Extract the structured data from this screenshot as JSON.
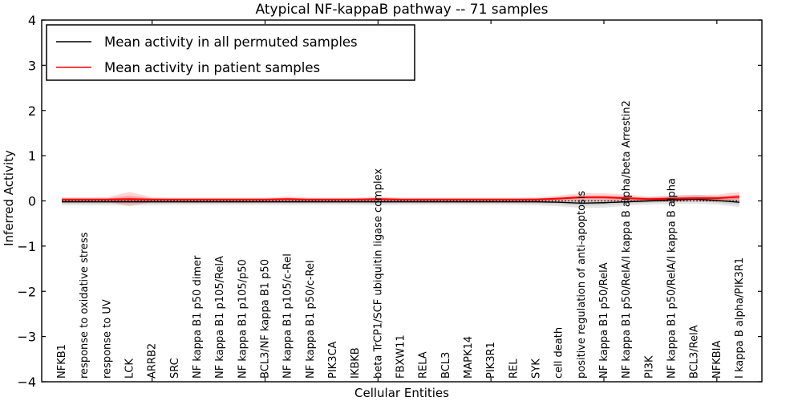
{
  "figure": {
    "background": "#ffffff"
  },
  "chart_data": {
    "type": "line",
    "title": "Atypical NF-kappaB pathway -- 71 samples",
    "xlabel": "Cellular Entities",
    "ylabel": "Inferred Activity",
    "ylim": [
      -4,
      4
    ],
    "ytick_values": [
      4,
      3,
      2,
      1,
      0,
      -1,
      -2,
      -3,
      -4
    ],
    "ytick_labels": [
      "4",
      "3",
      "2",
      "1",
      "0",
      "−1",
      "−2",
      "−3",
      "−4"
    ],
    "x_major_ticks": [
      5,
      10,
      15,
      20,
      25,
      30
    ],
    "grid": "off",
    "zero_line": {
      "value": 0,
      "style": "dotted",
      "color": "#000000"
    },
    "legend": {
      "position": "upper-left",
      "border_color": "#000000",
      "background": "#ffffff"
    },
    "categories": [
      "NFKB1",
      "response to oxidative stress",
      "response to UV",
      "LCK",
      "ARRB2",
      "SRC",
      "NF kappa B1 p50 dimer",
      "NF kappa B1 p105/RelA",
      "NF kappa B1 p105/p50",
      "BCL3/NF kappa B1 p50",
      "NF kappa B1 p105/c-Rel",
      "NF kappa B1 p50/c-Rel",
      "PIK3CA",
      "IKBKB",
      "beta TrCP1/SCF ubiquitin ligase complex",
      "FBXW11",
      "RELA",
      "BCL3",
      "MAPK14",
      "PIK3R1",
      "REL",
      "SYK",
      "cell death",
      "positive regulation of anti-apoptosis",
      "NF kappa B1 p50/RelA",
      "NF kappa B1 p50/RelA/I kappa B alpha/beta Arrestin2",
      "PI3K",
      "NF kappa B1 p50/RelA/I kappa B alpha",
      "BCL3/RelA",
      "NFKBIA",
      "I kappa B alpha/PIK3R1"
    ],
    "series": [
      {
        "name": "Mean activity in all permuted samples",
        "color": "#000000",
        "band_color": "#000000",
        "band_opacity": 0.1,
        "values": [
          -0.02,
          -0.02,
          -0.02,
          -0.02,
          -0.02,
          -0.02,
          -0.02,
          -0.02,
          -0.02,
          -0.02,
          -0.02,
          -0.02,
          -0.02,
          -0.02,
          -0.02,
          -0.02,
          -0.02,
          -0.02,
          -0.02,
          -0.02,
          -0.02,
          -0.02,
          -0.03,
          -0.05,
          -0.04,
          -0.02,
          0.0,
          0.02,
          0.04,
          0.01,
          -0.03
        ],
        "band": [
          0.08,
          0.08,
          0.08,
          0.08,
          0.08,
          0.07,
          0.07,
          0.07,
          0.07,
          0.07,
          0.07,
          0.07,
          0.07,
          0.07,
          0.08,
          0.07,
          0.07,
          0.07,
          0.07,
          0.07,
          0.07,
          0.08,
          0.09,
          0.11,
          0.11,
          0.09,
          0.08,
          0.09,
          0.1,
          0.09,
          0.11
        ]
      },
      {
        "name": "Mean activity in patient samples",
        "color": "#ff0000",
        "band_color": "#ff0000",
        "band_opacity": 0.16,
        "values": [
          0.03,
          0.03,
          0.03,
          0.04,
          0.03,
          0.03,
          0.03,
          0.03,
          0.03,
          0.03,
          0.04,
          0.03,
          0.03,
          0.03,
          0.04,
          0.03,
          0.03,
          0.03,
          0.03,
          0.03,
          0.03,
          0.03,
          0.05,
          0.08,
          0.08,
          0.06,
          0.04,
          0.05,
          0.06,
          0.06,
          0.09
        ],
        "band": [
          0.05,
          0.05,
          0.05,
          0.16,
          0.05,
          0.04,
          0.04,
          0.04,
          0.04,
          0.04,
          0.06,
          0.04,
          0.04,
          0.04,
          0.06,
          0.04,
          0.04,
          0.04,
          0.04,
          0.04,
          0.04,
          0.05,
          0.07,
          0.09,
          0.09,
          0.08,
          0.06,
          0.07,
          0.07,
          0.08,
          0.11
        ]
      }
    ]
  }
}
